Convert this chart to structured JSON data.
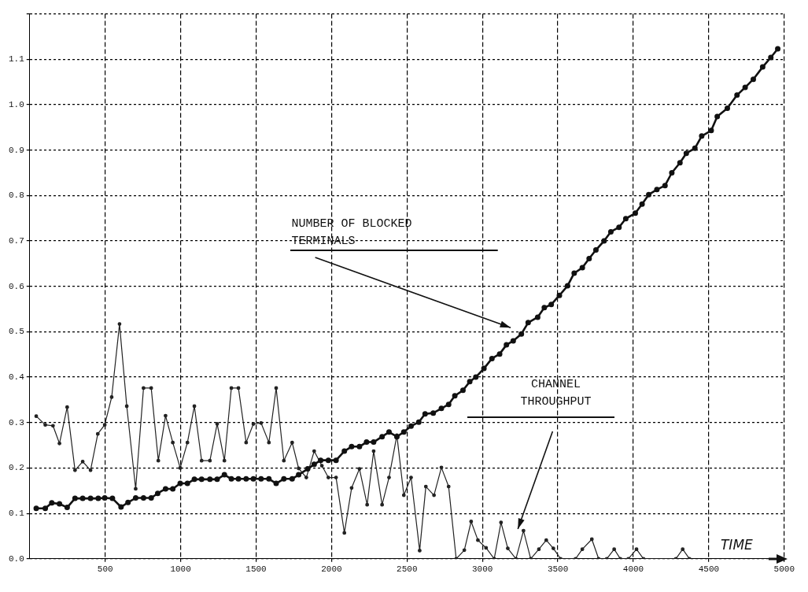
{
  "chart_data": {
    "type": "line",
    "xlabel": "TIME",
    "xlim": [
      0,
      5000
    ],
    "xticks": [
      500,
      1000,
      1500,
      2000,
      2500,
      3000,
      3500,
      4000,
      4500,
      5000
    ],
    "ylim": [
      0,
      1.2
    ],
    "yticks": [
      {
        "value": 0,
        "label": "0.0"
      },
      0.1,
      0.2,
      0.3,
      0.4,
      0.5,
      0.6,
      0.7,
      0.8,
      0.9,
      {
        "value": 1,
        "label": "1.0"
      },
      1.1,
      {
        "value": 1.2,
        "label": null
      }
    ],
    "grid": true,
    "legend": false,
    "marker": "circle",
    "line_style": "solid",
    "annotations": [
      "NUMBER OF BLOCKED TERMINALS",
      "CHANNEL THROUGHPUT"
    ],
    "series": [
      {
        "color": "#111111",
        "x": [
          43,
          103,
          146,
          197,
          248,
          300,
          351,
          403,
          454,
          497,
          548,
          605,
          651,
          702,
          754,
          805,
          848,
          900,
          948,
          997,
          1045,
          1091,
          1139,
          1194,
          1242,
          1290,
          1336,
          1383,
          1434,
          1482,
          1533,
          1585,
          1633,
          1684,
          1739,
          1782,
          1842,
          1885,
          1928,
          1979,
          2030,
          2085,
          2133,
          2185,
          2232,
          2279,
          2335,
          2381,
          2433,
          2479,
          2527,
          2578,
          2620,
          2674,
          2728,
          2776,
          2817,
          2871,
          2916,
          2956,
          3010,
          3063,
          3114,
          3159,
          3204,
          3258,
          3303,
          3366,
          3410,
          3456,
          3510,
          3564,
          3608,
          3662,
          3707,
          3752,
          3806,
          3851,
          3905,
          3950,
          4013,
          4058,
          4102,
          4156,
          4210,
          4255,
          4309,
          4351,
          4408,
          4453,
          4516,
          4556,
          4623,
          4687,
          4741,
          4795,
          4857,
          4911,
          4957
        ],
        "values": [
          0.111,
          0.111,
          0.123,
          0.121,
          0.113,
          0.133,
          0.133,
          0.133,
          0.133,
          0.134,
          0.133,
          0.114,
          0.124,
          0.134,
          0.134,
          0.134,
          0.144,
          0.154,
          0.154,
          0.166,
          0.166,
          0.175,
          0.175,
          0.175,
          0.175,
          0.185,
          0.176,
          0.176,
          0.176,
          0.176,
          0.176,
          0.176,
          0.166,
          0.176,
          0.176,
          0.185,
          0.198,
          0.208,
          0.217,
          0.217,
          0.217,
          0.237,
          0.247,
          0.247,
          0.257,
          0.257,
          0.269,
          0.279,
          0.269,
          0.279,
          0.292,
          0.301,
          0.319,
          0.321,
          0.331,
          0.34,
          0.359,
          0.371,
          0.39,
          0.4,
          0.419,
          0.441,
          0.451,
          0.471,
          0.48,
          0.495,
          0.52,
          0.532,
          0.553,
          0.56,
          0.58,
          0.601,
          0.629,
          0.641,
          0.661,
          0.68,
          0.7,
          0.72,
          0.73,
          0.749,
          0.761,
          0.781,
          0.802,
          0.813,
          0.822,
          0.85,
          0.872,
          0.893,
          0.904,
          0.931,
          0.943,
          0.974,
          0.992,
          1.021,
          1.038,
          1.056,
          1.083,
          1.104,
          1.123
        ]
      },
      {
        "color": "#222222",
        "x": [
          43,
          103,
          154,
          197,
          248,
          300,
          351,
          403,
          451,
          497,
          543,
          595,
          643,
          702,
          754,
          805,
          852,
          900,
          948,
          997,
          1045,
          1091,
          1139,
          1194,
          1242,
          1290,
          1336,
          1383,
          1434,
          1482,
          1533,
          1585,
          1633,
          1684,
          1739,
          1782,
          1833,
          1885,
          1936,
          1979,
          2030,
          2085,
          2133,
          2185,
          2236,
          2279,
          2335,
          2381,
          2433,
          2479,
          2527,
          2584,
          2625,
          2679,
          2728,
          2776,
          2826,
          2880,
          2925,
          2970,
          3024,
          3078,
          3123,
          3168,
          3222,
          3272,
          3320,
          3374,
          3423,
          3470,
          3518,
          3617,
          3662,
          3725,
          3770,
          3824,
          3873,
          3914,
          3967,
          4021,
          4067,
          4282,
          4327,
          4372
        ],
        "values": [
          0.314,
          0.295,
          0.293,
          0.254,
          0.334,
          0.195,
          0.214,
          0.195,
          0.275,
          0.295,
          0.356,
          0.517,
          0.336,
          0.154,
          0.376,
          0.376,
          0.216,
          0.315,
          0.256,
          0.2,
          0.256,
          0.336,
          0.216,
          0.216,
          0.297,
          0.216,
          0.376,
          0.376,
          0.256,
          0.297,
          0.299,
          0.256,
          0.376,
          0.216,
          0.256,
          0.199,
          0.179,
          0.237,
          0.205,
          0.179,
          0.179,
          0.057,
          0.156,
          0.198,
          0.119,
          0.237,
          0.119,
          0.179,
          0.272,
          0.14,
          0.179,
          0.018,
          0.159,
          0.14,
          0.201,
          0.159,
          0,
          0.019,
          0.082,
          0.041,
          0.024,
          0,
          0.08,
          0.023,
          0,
          0.062,
          0,
          0.021,
          0.041,
          0.023,
          0,
          0,
          0.021,
          0.043,
          0,
          0,
          0.021,
          0,
          0,
          0.021,
          0,
          0,
          0.021,
          0
        ]
      }
    ]
  }
}
